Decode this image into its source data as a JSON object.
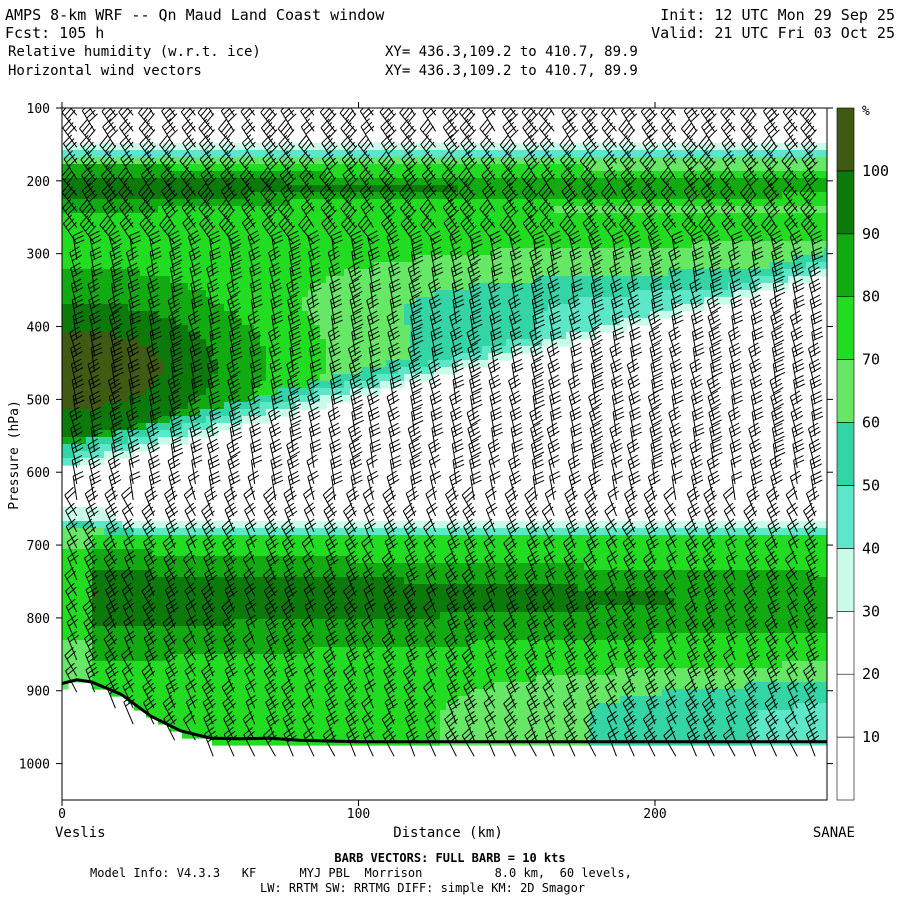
{
  "header": {
    "title": "AMPS 8-km WRF -- Qn Maud Land Coast window",
    "forecast": "Fcst:  105 h",
    "field1": "Relative humidity (w.r.t. ice)",
    "field2": "Horizontal wind vectors",
    "init": "Init: 12 UTC Mon 29 Sep 25",
    "valid": "Valid: 21 UTC Fri 03 Oct 25",
    "xy1": "XY= 436.3,109.2 to 410.7, 89.9",
    "xy2": "XY= 436.3,109.2 to 410.7, 89.9"
  },
  "footer": {
    "barb_note": "BARB VECTORS:  FULL BARB = 10 kts",
    "model_line1": "Model Info: V4.3.3   KF      MYJ PBL  Morrison          8.0 km,  60 levels,",
    "model_line2": "LW: RRTM SW: RRTMG   DIFF: simple KM: 2D Smagor"
  },
  "colors": {
    "rh_levels": [
      "#ffffff",
      "#ffffff",
      "#ffffff",
      "#c8fce8",
      "#5ce8c8",
      "#33d4a6",
      "#66e866",
      "#22dc22",
      "#11aa11",
      "#0b7a0b",
      "#3f5a12"
    ],
    "terrain_line": "#000000",
    "barb": "#000000"
  },
  "chart_data": {
    "type": "heatmap",
    "title": "Relative humidity (w.r.t. ice)",
    "xlabel": "Distance (km)",
    "ylabel": "Pressure (hPa)",
    "xlim": [
      0,
      258
    ],
    "ylim": [
      1050,
      100
    ],
    "x_ticks": [
      0,
      100,
      200
    ],
    "y_ticks": [
      100,
      200,
      300,
      400,
      500,
      600,
      700,
      800,
      900,
      1000
    ],
    "x_end_labels": {
      "left": "Veslis",
      "right": "SANAE"
    },
    "colorbar": {
      "unit": "%",
      "levels": [
        0,
        10,
        20,
        30,
        40,
        50,
        60,
        70,
        80,
        90,
        100,
        110
      ],
      "tick_labels": [
        "10",
        "20",
        "30",
        "40",
        "50",
        "60",
        "70",
        "80",
        "90",
        "100"
      ]
    },
    "rh_bands": [
      {
        "pressure_top": 100,
        "pressure_bottom": 145,
        "rh_range": "<30"
      },
      {
        "pressure_top": 145,
        "pressure_bottom": 170,
        "rh_range": "30-60"
      },
      {
        "pressure_top": 170,
        "pressure_bottom": 230,
        "rh_range": "70-100"
      },
      {
        "pressure_top": 230,
        "pressure_bottom": 600,
        "rh_range": "30-100 (decreasing eastward)"
      },
      {
        "pressure_top": 600,
        "pressure_bottom": 680,
        "rh_range": "<30"
      },
      {
        "pressure_top": 680,
        "pressure_bottom": 960,
        "rh_range": "40-100"
      }
    ],
    "terrain_surface": {
      "x": [
        0,
        5,
        10,
        20,
        30,
        40,
        50,
        60,
        70,
        80,
        100,
        120,
        150,
        200,
        258
      ],
      "pressure": [
        890,
        885,
        888,
        905,
        935,
        955,
        965,
        966,
        965,
        968,
        970,
        970,
        970,
        970,
        970
      ]
    },
    "wind_barbs": {
      "unit": "kts",
      "full_barb": 10,
      "columns_x": [
        5,
        11,
        18,
        24,
        31,
        38,
        45,
        51,
        58,
        65,
        72,
        78,
        85,
        92,
        99,
        105,
        112,
        119,
        126,
        133,
        139,
        146,
        153,
        160,
        166,
        173,
        180,
        187,
        193,
        200,
        207,
        214,
        220,
        227,
        234,
        241,
        248,
        254
      ]
    }
  }
}
